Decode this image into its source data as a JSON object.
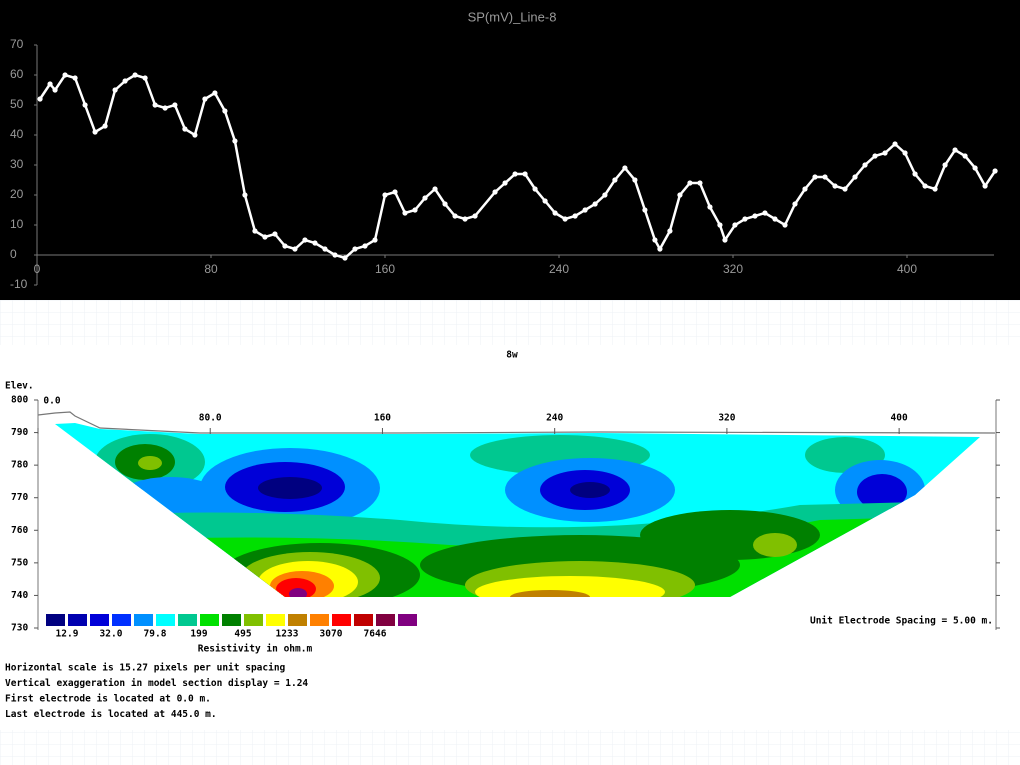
{
  "chart_data": [
    {
      "type": "line",
      "title": "SP(mV)_Line-8",
      "x": [
        1.4,
        6,
        8.3,
        12.9,
        17.5,
        22.1,
        26.7,
        31.3,
        35.9,
        40.5,
        45.1,
        49.7,
        54.3,
        58.9,
        63.4,
        68,
        72.6,
        77.2,
        81.8,
        86.4,
        91,
        95.6,
        100.2,
        104.8,
        109.4,
        114,
        118.6,
        123.2,
        127.8,
        132.4,
        137,
        141.6,
        146.2,
        150.8,
        155.4,
        160,
        164.6,
        169.2,
        173.8,
        178.4,
        183,
        187.6,
        192.2,
        196.8,
        201.4,
        210.6,
        215.2,
        219.8,
        224.4,
        229,
        233.6,
        238.2,
        242.8,
        247.4,
        252,
        256.6,
        261.1,
        265.7,
        270.3,
        274.9,
        279.5,
        284.1,
        286.4,
        291,
        295.6,
        300.2,
        304.8,
        309.4,
        314,
        316.3,
        320.9,
        325.5,
        330.1,
        334.7,
        339.3,
        343.9,
        348.5,
        353.1,
        357.7,
        362.3,
        366.9,
        371.5,
        376.1,
        380.7,
        385.3,
        389.9,
        394.5,
        399.1,
        403.7,
        408.3,
        412.9,
        417.5,
        422.1,
        426.7,
        431.3,
        435.9,
        440.5
      ],
      "series": [
        {
          "color": "#ffffff",
          "values": [
            52,
            57,
            55,
            60,
            59,
            50,
            41,
            43,
            55,
            58,
            60,
            59,
            50,
            49,
            50,
            42,
            40,
            52,
            54,
            48,
            38,
            20,
            8,
            6,
            7,
            3,
            2,
            5,
            4,
            2,
            0,
            -1,
            2,
            3,
            5,
            20,
            21,
            14,
            15,
            19,
            22,
            17,
            13,
            12,
            13,
            21,
            24,
            27,
            27,
            22,
            18,
            14,
            12,
            13,
            15,
            17,
            20,
            25,
            29,
            25,
            15,
            5,
            2,
            8,
            20,
            24,
            24,
            16,
            10,
            5,
            10,
            12,
            13,
            14,
            12,
            10,
            17,
            22,
            26,
            26,
            23,
            22,
            26,
            30,
            33,
            34,
            37,
            34,
            27,
            23,
            22,
            30,
            35,
            33,
            29,
            23,
            28
          ]
        }
      ],
      "xlim": [
        0,
        440
      ],
      "xticks": [
        0,
        80,
        160,
        240,
        320,
        400
      ],
      "ylim": [
        -10,
        70
      ],
      "yticks": [
        -10,
        0,
        10,
        20,
        30,
        40,
        50,
        60,
        70
      ]
    },
    {
      "type": "section",
      "title": "8w",
      "y_axis_label": "Elev.",
      "xlim": [
        0,
        445
      ],
      "xticks": [
        {
          "value": 0,
          "label": "0.0"
        },
        {
          "value": 80,
          "label": "80.0"
        },
        160,
        240,
        320,
        400
      ],
      "ylim": [
        730,
        800
      ],
      "yticks": [
        800,
        790,
        780,
        770,
        760,
        750,
        740,
        730
      ],
      "colorbar": {
        "title": "Resistivity in ohm.m",
        "colors": [
          "#000080",
          "#0000b0",
          "#0000d8",
          "#0030ff",
          "#0090ff",
          "#00ffff",
          "#00c890",
          "#00e000",
          "#008000",
          "#80c000",
          "#ffff00",
          "#c08000",
          "#ff8000",
          "#ff0000",
          "#c00000",
          "#800040",
          "#800080"
        ],
        "labels": [
          "12.9",
          "32.0",
          "79.8",
          "199",
          "495",
          "1233",
          "3070",
          "7646"
        ]
      },
      "spacing_note": "Unit Electrode Spacing = 5.00 m.",
      "notes": [
        "Horizontal scale is 15.27 pixels per unit spacing",
        "Vertical exaggeration in model section display = 1.24",
        "First electrode is located at 0.0  m.",
        "Last electrode is located at 445.0 m."
      ]
    }
  ]
}
